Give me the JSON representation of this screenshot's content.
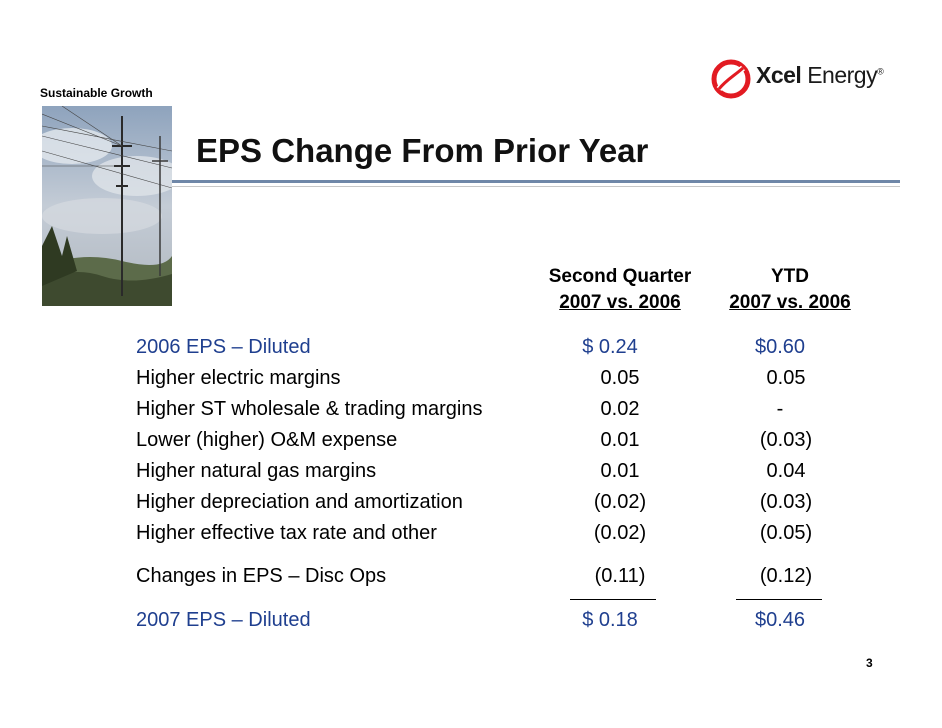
{
  "slide": {
    "section_label": "Sustainable Growth",
    "title": "EPS Change From Prior Year",
    "page_number": "3"
  },
  "logo": {
    "brand_bold": "Xcel",
    "brand_light": " Energy",
    "mark": "®",
    "brand_color": "#e21b22"
  },
  "columns": {
    "second_quarter": {
      "line1": "Second Quarter",
      "line2": "2007 vs. 2006"
    },
    "ytd": {
      "line1": "YTD",
      "line2": "2007 vs. 2006"
    }
  },
  "table": {
    "rows": [
      {
        "label": "2006 EPS – Diluted",
        "q2": "$ 0.24",
        "ytd": "$0.60"
      },
      {
        "label": "Higher electric margins",
        "q2": "0.05",
        "ytd": "0.05"
      },
      {
        "label": "Higher ST wholesale & trading margins",
        "q2": "0.02",
        "ytd": "-"
      },
      {
        "label": "Lower (higher) O&M expense",
        "q2": "0.01",
        "ytd": "(0.03)"
      },
      {
        "label": "Higher natural gas margins",
        "q2": "0.01",
        "ytd": "0.04"
      },
      {
        "label": "Higher depreciation and amortization",
        "q2": "(0.02)",
        "ytd": "(0.03)"
      },
      {
        "label": "Higher effective tax rate and other",
        "q2": "(0.02)",
        "ytd": "(0.05)"
      },
      {
        "label": "Changes in EPS – Disc Ops",
        "q2": "(0.11)",
        "ytd": "(0.12)"
      },
      {
        "label": "2007 EPS – Diluted",
        "q2": "$ 0.18",
        "ytd": "$0.46"
      }
    ]
  },
  "colors": {
    "total_rows_text": "#1f3f8f",
    "title_rule": "#6f87a8"
  }
}
